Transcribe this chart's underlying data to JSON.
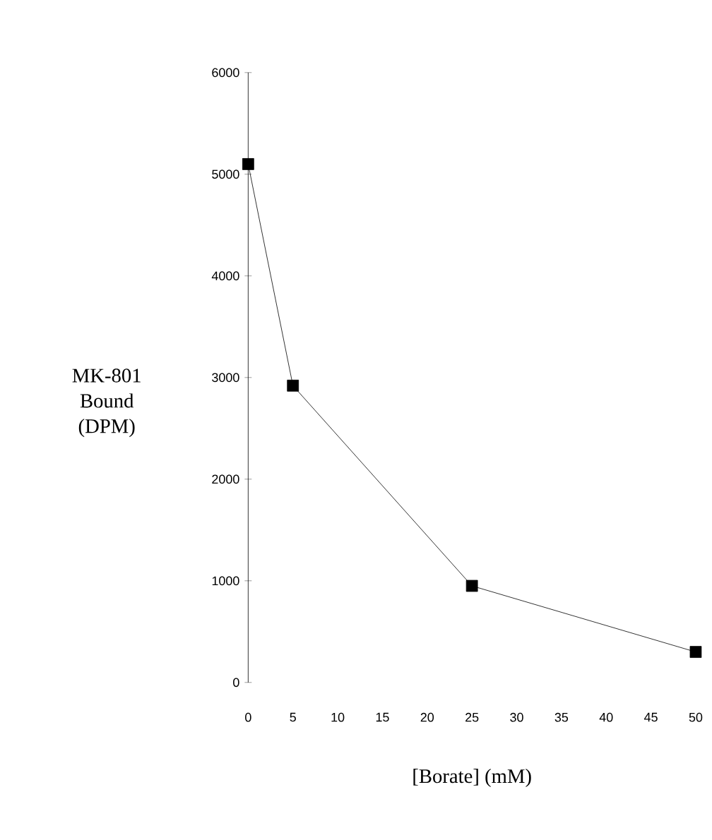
{
  "chart_data": {
    "type": "line",
    "xlabel": "[Borate] (mM)",
    "ylabel": "MK-801 Bound (DPM)",
    "x": [
      0,
      5,
      25,
      50
    ],
    "values": [
      5100,
      2920,
      950,
      300
    ],
    "color": "#000000",
    "marker": "square",
    "line_style": "solid",
    "xlim": [
      0,
      50
    ],
    "ylim": [
      0,
      6000
    ],
    "xticks": [
      {
        "value": 0,
        "label": "0"
      },
      {
        "value": 5,
        "label": "5"
      },
      {
        "value": 10,
        "label": "10"
      },
      {
        "value": 15,
        "label": "15"
      },
      {
        "value": 20,
        "label": "20"
      },
      {
        "value": 25,
        "label": "25"
      },
      {
        "value": 30,
        "label": "30"
      },
      {
        "value": 35,
        "label": "35"
      },
      {
        "value": 40,
        "label": "40"
      },
      {
        "value": 45,
        "label": "45"
      },
      {
        "value": 50,
        "label": "50"
      }
    ],
    "yticks": [
      {
        "value": 0,
        "label": "0"
      },
      {
        "value": 1000,
        "label": "1000"
      },
      {
        "value": 2000,
        "label": "2000"
      },
      {
        "value": 3000,
        "label": "3000"
      },
      {
        "value": 4000,
        "label": "4000"
      },
      {
        "value": 5000,
        "label": "5000"
      },
      {
        "value": 6000,
        "label": "6000"
      }
    ],
    "grid": false
  }
}
